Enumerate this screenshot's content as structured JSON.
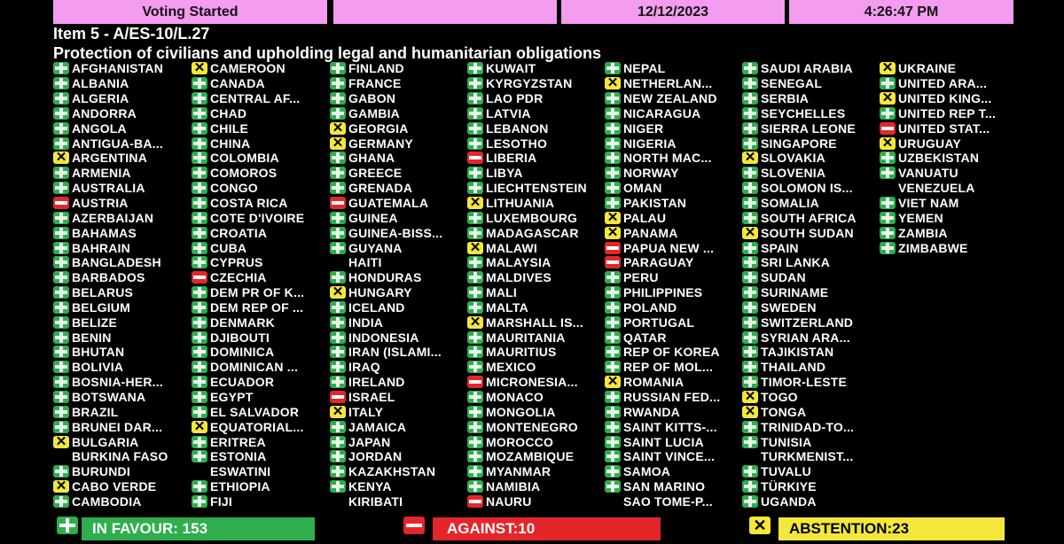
{
  "header": {
    "status": "Voting Started",
    "blank": "",
    "date": "12/12/2023",
    "time": "4:26:47 PM"
  },
  "item": "Item 5 - A/ES-10/L.27",
  "subject": "Protection of civilians and upholding legal and humanitarian obligations",
  "colors": {
    "header_bg": "#f39cf0",
    "yes": "#2fae4e",
    "no": "#e4262b",
    "abstain": "#f3e73c"
  },
  "vote_legend": {
    "Y": "in-favour (green plus icon)",
    "N": "against (red minus icon)",
    "A": "abstention (yellow x icon)",
    "": "no vote recorded"
  },
  "columns": [
    [
      [
        "AFGHANISTAN",
        "Y"
      ],
      [
        "ALBANIA",
        "Y"
      ],
      [
        "ALGERIA",
        "Y"
      ],
      [
        "ANDORRA",
        "Y"
      ],
      [
        "ANGOLA",
        "Y"
      ],
      [
        "ANTIGUA-BA...",
        "Y"
      ],
      [
        "ARGENTINA",
        "A"
      ],
      [
        "ARMENIA",
        "Y"
      ],
      [
        "AUSTRALIA",
        "Y"
      ],
      [
        "AUSTRIA",
        "N"
      ],
      [
        "AZERBAIJAN",
        "Y"
      ],
      [
        "BAHAMAS",
        "Y"
      ],
      [
        "BAHRAIN",
        "Y"
      ],
      [
        "BANGLADESH",
        "Y"
      ],
      [
        "BARBADOS",
        "Y"
      ],
      [
        "BELARUS",
        "Y"
      ],
      [
        "BELGIUM",
        "Y"
      ],
      [
        "BELIZE",
        "Y"
      ],
      [
        "BENIN",
        "Y"
      ],
      [
        "BHUTAN",
        "Y"
      ],
      [
        "BOLIVIA",
        "Y"
      ],
      [
        "BOSNIA-HER...",
        "Y"
      ],
      [
        "BOTSWANA",
        "Y"
      ],
      [
        "BRAZIL",
        "Y"
      ],
      [
        "BRUNEI DAR...",
        "Y"
      ],
      [
        "BULGARIA",
        "A"
      ],
      [
        "BURKINA FASO",
        ""
      ],
      [
        "BURUNDI",
        "Y"
      ],
      [
        "CABO VERDE",
        "A"
      ],
      [
        "CAMBODIA",
        "Y"
      ]
    ],
    [
      [
        "CAMEROON",
        "A"
      ],
      [
        "CANADA",
        "Y"
      ],
      [
        "CENTRAL AF...",
        "Y"
      ],
      [
        "CHAD",
        "Y"
      ],
      [
        "CHILE",
        "Y"
      ],
      [
        "CHINA",
        "Y"
      ],
      [
        "COLOMBIA",
        "Y"
      ],
      [
        "COMOROS",
        "Y"
      ],
      [
        "CONGO",
        "Y"
      ],
      [
        "COSTA RICA",
        "Y"
      ],
      [
        "COTE D'IVOIRE",
        "Y"
      ],
      [
        "CROATIA",
        "Y"
      ],
      [
        "CUBA",
        "Y"
      ],
      [
        "CYPRUS",
        "Y"
      ],
      [
        "CZECHIA",
        "N"
      ],
      [
        "DEM PR OF K...",
        "Y"
      ],
      [
        "DEM REP OF ...",
        "Y"
      ],
      [
        "DENMARK",
        "Y"
      ],
      [
        "DJIBOUTI",
        "Y"
      ],
      [
        "DOMINICA",
        "Y"
      ],
      [
        "DOMINICAN ...",
        "Y"
      ],
      [
        "ECUADOR",
        "Y"
      ],
      [
        "EGYPT",
        "Y"
      ],
      [
        "EL SALVADOR",
        "Y"
      ],
      [
        "EQUATORIAL...",
        "A"
      ],
      [
        "ERITREA",
        "Y"
      ],
      [
        "ESTONIA",
        "Y"
      ],
      [
        "ESWATINI",
        ""
      ],
      [
        "ETHIOPIA",
        "Y"
      ],
      [
        "FIJI",
        "Y"
      ]
    ],
    [
      [
        "FINLAND",
        "Y"
      ],
      [
        "FRANCE",
        "Y"
      ],
      [
        "GABON",
        "Y"
      ],
      [
        "GAMBIA",
        "Y"
      ],
      [
        "GEORGIA",
        "A"
      ],
      [
        "GERMANY",
        "A"
      ],
      [
        "GHANA",
        "Y"
      ],
      [
        "GREECE",
        "Y"
      ],
      [
        "GRENADA",
        "Y"
      ],
      [
        "GUATEMALA",
        "N"
      ],
      [
        "GUINEA",
        "Y"
      ],
      [
        "GUINEA-BISS...",
        "Y"
      ],
      [
        "GUYANA",
        "Y"
      ],
      [
        "HAITI",
        ""
      ],
      [
        "HONDURAS",
        "Y"
      ],
      [
        "HUNGARY",
        "A"
      ],
      [
        "ICELAND",
        "Y"
      ],
      [
        "INDIA",
        "Y"
      ],
      [
        "INDONESIA",
        "Y"
      ],
      [
        "IRAN (ISLAMI...",
        "Y"
      ],
      [
        "IRAQ",
        "Y"
      ],
      [
        "IRELAND",
        "Y"
      ],
      [
        "ISRAEL",
        "N"
      ],
      [
        "ITALY",
        "A"
      ],
      [
        "JAMAICA",
        "Y"
      ],
      [
        "JAPAN",
        "Y"
      ],
      [
        "JORDAN",
        "Y"
      ],
      [
        "KAZAKHSTAN",
        "Y"
      ],
      [
        "KENYA",
        "Y"
      ],
      [
        "KIRIBATI",
        ""
      ]
    ],
    [
      [
        "KUWAIT",
        "Y"
      ],
      [
        "KYRGYZSTAN",
        "Y"
      ],
      [
        "LAO PDR",
        "Y"
      ],
      [
        "LATVIA",
        "Y"
      ],
      [
        "LEBANON",
        "Y"
      ],
      [
        "LESOTHO",
        "Y"
      ],
      [
        "LIBERIA",
        "N"
      ],
      [
        "LIBYA",
        "Y"
      ],
      [
        "LIECHTENSTEIN",
        "Y"
      ],
      [
        "LITHUANIA",
        "A"
      ],
      [
        "LUXEMBOURG",
        "Y"
      ],
      [
        "MADAGASCAR",
        "Y"
      ],
      [
        "MALAWI",
        "A"
      ],
      [
        "MALAYSIA",
        "Y"
      ],
      [
        "MALDIVES",
        "Y"
      ],
      [
        "MALI",
        "Y"
      ],
      [
        "MALTA",
        "Y"
      ],
      [
        "MARSHALL IS...",
        "A"
      ],
      [
        "MAURITANIA",
        "Y"
      ],
      [
        "MAURITIUS",
        "Y"
      ],
      [
        "MEXICO",
        "Y"
      ],
      [
        "MICRONESIA...",
        "N"
      ],
      [
        "MONACO",
        "Y"
      ],
      [
        "MONGOLIA",
        "Y"
      ],
      [
        "MONTENEGRO",
        "Y"
      ],
      [
        "MOROCCO",
        "Y"
      ],
      [
        "MOZAMBIQUE",
        "Y"
      ],
      [
        "MYANMAR",
        "Y"
      ],
      [
        "NAMIBIA",
        "Y"
      ],
      [
        "NAURU",
        "N"
      ]
    ],
    [
      [
        "NEPAL",
        "Y"
      ],
      [
        "NETHERLAN...",
        "A"
      ],
      [
        "NEW ZEALAND",
        "Y"
      ],
      [
        "NICARAGUA",
        "Y"
      ],
      [
        "NIGER",
        "Y"
      ],
      [
        "NIGERIA",
        "Y"
      ],
      [
        "NORTH MAC...",
        "Y"
      ],
      [
        "NORWAY",
        "Y"
      ],
      [
        "OMAN",
        "Y"
      ],
      [
        "PAKISTAN",
        "Y"
      ],
      [
        "PALAU",
        "A"
      ],
      [
        "PANAMA",
        "A"
      ],
      [
        "PAPUA NEW ...",
        "N"
      ],
      [
        "PARAGUAY",
        "N"
      ],
      [
        "PERU",
        "Y"
      ],
      [
        "PHILIPPINES",
        "Y"
      ],
      [
        "POLAND",
        "Y"
      ],
      [
        "PORTUGAL",
        "Y"
      ],
      [
        "QATAR",
        "Y"
      ],
      [
        "REP OF KOREA",
        "Y"
      ],
      [
        "REP OF MOL...",
        "Y"
      ],
      [
        "ROMANIA",
        "A"
      ],
      [
        "RUSSIAN FED...",
        "Y"
      ],
      [
        "RWANDA",
        "Y"
      ],
      [
        "SAINT KITTS-...",
        "Y"
      ],
      [
        "SAINT LUCIA",
        "Y"
      ],
      [
        "SAINT VINCE...",
        "Y"
      ],
      [
        "SAMOA",
        "Y"
      ],
      [
        "SAN MARINO",
        "Y"
      ],
      [
        "SAO TOME-P...",
        ""
      ]
    ],
    [
      [
        "SAUDI ARABIA",
        "Y"
      ],
      [
        "SENEGAL",
        "Y"
      ],
      [
        "SERBIA",
        "Y"
      ],
      [
        "SEYCHELLES",
        "Y"
      ],
      [
        "SIERRA LEONE",
        "Y"
      ],
      [
        "SINGAPORE",
        "Y"
      ],
      [
        "SLOVAKIA",
        "A"
      ],
      [
        "SLOVENIA",
        "Y"
      ],
      [
        "SOLOMON IS...",
        "Y"
      ],
      [
        "SOMALIA",
        "Y"
      ],
      [
        "SOUTH AFRICA",
        "Y"
      ],
      [
        "SOUTH SUDAN",
        "A"
      ],
      [
        "SPAIN",
        "Y"
      ],
      [
        "SRI LANKA",
        "Y"
      ],
      [
        "SUDAN",
        "Y"
      ],
      [
        "SURINAME",
        "Y"
      ],
      [
        "SWEDEN",
        "Y"
      ],
      [
        "SWITZERLAND",
        "Y"
      ],
      [
        "SYRIAN ARA...",
        "Y"
      ],
      [
        "TAJIKISTAN",
        "Y"
      ],
      [
        "THAILAND",
        "Y"
      ],
      [
        "TIMOR-LESTE",
        "Y"
      ],
      [
        "TOGO",
        "A"
      ],
      [
        "TONGA",
        "A"
      ],
      [
        "TRINIDAD-TO...",
        "Y"
      ],
      [
        "TUNISIA",
        "Y"
      ],
      [
        "TURKMENIST...",
        ""
      ],
      [
        "TUVALU",
        "Y"
      ],
      [
        "TÜRKIYE",
        "Y"
      ],
      [
        "UGANDA",
        "Y"
      ]
    ],
    [
      [
        "UKRAINE",
        "A"
      ],
      [
        "UNITED ARA...",
        "Y"
      ],
      [
        "UNITED KING...",
        "A"
      ],
      [
        "UNITED REP T...",
        "Y"
      ],
      [
        "UNITED STAT...",
        "N"
      ],
      [
        "URUGUAY",
        "A"
      ],
      [
        "UZBEKISTAN",
        "Y"
      ],
      [
        "VANUATU",
        "Y"
      ],
      [
        "VENEZUELA",
        ""
      ],
      [
        "VIET NAM",
        "Y"
      ],
      [
        "YEMEN",
        "Y"
      ],
      [
        "ZAMBIA",
        "Y"
      ],
      [
        "ZIMBABWE",
        "Y"
      ]
    ]
  ],
  "totals": {
    "in_favour": "IN FAVOUR: 153",
    "against": "AGAINST:10",
    "abstention": "ABSTENTION:23"
  }
}
